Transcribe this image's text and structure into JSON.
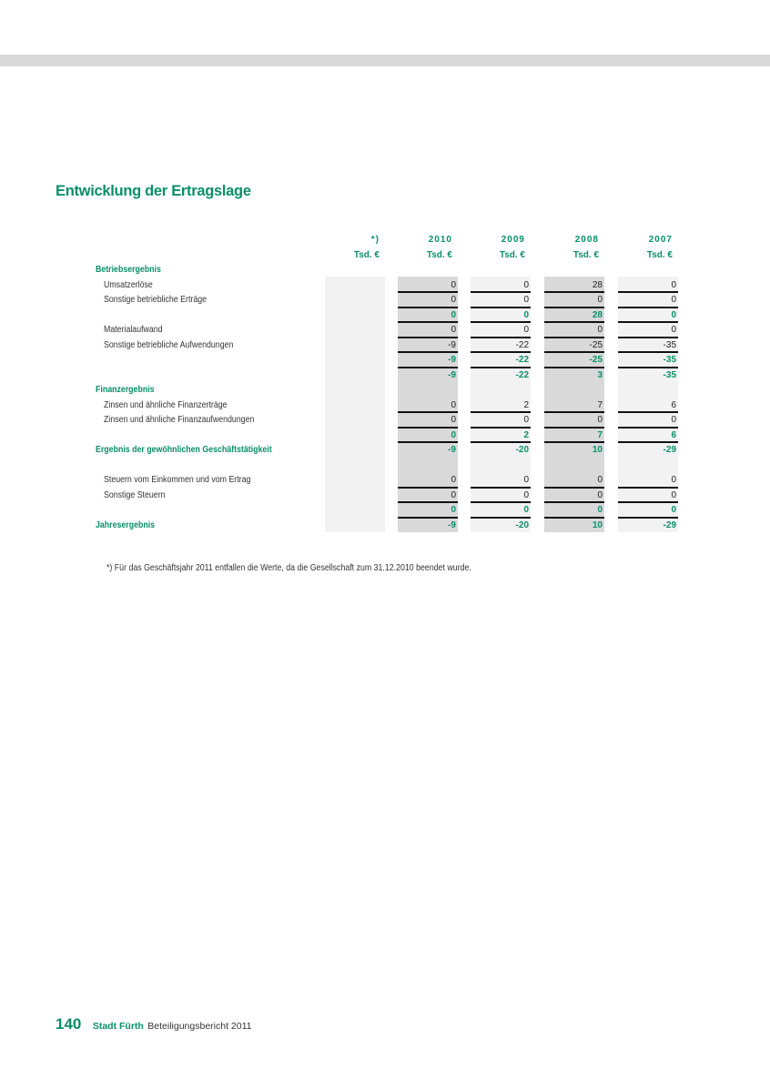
{
  "title": "Entwicklung der Ertragslage",
  "columns": [
    {
      "year": "*)",
      "unit": "Tsd. €",
      "shade": "light"
    },
    {
      "year": "2010",
      "unit": "Tsd. €",
      "shade": "dark"
    },
    {
      "year": "2009",
      "unit": "Tsd. €",
      "shade": "light"
    },
    {
      "year": "2008",
      "unit": "Tsd. €",
      "shade": "dark"
    },
    {
      "year": "2007",
      "unit": "Tsd. €",
      "shade": "light"
    }
  ],
  "rows": [
    {
      "label": "Betriebsergebnis",
      "type": "section",
      "values": null
    },
    {
      "label": "Umsatzerlöse",
      "type": "item",
      "values": [
        "",
        "0",
        "0",
        "28",
        "0"
      ],
      "line": true
    },
    {
      "label": "Sonstige betriebliche Erträge",
      "type": "item",
      "values": [
        "",
        "0",
        "0",
        "0",
        "0"
      ],
      "line": true
    },
    {
      "label": "",
      "type": "subtotal",
      "values": [
        "",
        "0",
        "0",
        "28",
        "0"
      ],
      "line": true
    },
    {
      "label": "Materialaufwand",
      "type": "item",
      "values": [
        "",
        "0",
        "0",
        "0",
        "0"
      ],
      "line": true
    },
    {
      "label": "Sonstige betriebliche Aufwendungen",
      "type": "item",
      "values": [
        "",
        "-9",
        "-22",
        "-25",
        "-35"
      ],
      "line": true
    },
    {
      "label": "",
      "type": "subtotal",
      "values": [
        "",
        "-9",
        "-22",
        "-25",
        "-35"
      ],
      "line": true
    },
    {
      "label": "",
      "type": "subtotal",
      "values": [
        "",
        "-9",
        "-22",
        "3",
        "-35"
      ],
      "line": false
    },
    {
      "label": "Finanzergebnis",
      "type": "section",
      "values": null
    },
    {
      "label": "Zinsen und ähnliche Finanzerträge",
      "type": "item",
      "values": [
        "",
        "0",
        "2",
        "7",
        "6"
      ],
      "line": true
    },
    {
      "label": "Zinsen und ähnliche Finanzaufwendungen",
      "type": "item",
      "values": [
        "",
        "0",
        "0",
        "0",
        "0"
      ],
      "line": true
    },
    {
      "label": "",
      "type": "subtotal",
      "values": [
        "",
        "0",
        "2",
        "7",
        "6"
      ],
      "line": true
    },
    {
      "label": "Ergebnis der gewöhnlichen Geschäftstätigkeit",
      "type": "section",
      "values": [
        "",
        "-9",
        "-20",
        "10",
        "-29"
      ],
      "line": false
    },
    {
      "label": "",
      "type": "blank",
      "values": null
    },
    {
      "label": "Steuern vom Einkommen und vom Ertrag",
      "type": "item",
      "values": [
        "",
        "0",
        "0",
        "0",
        "0"
      ],
      "line": true
    },
    {
      "label": "Sonstige Steuern",
      "type": "item",
      "values": [
        "",
        "0",
        "0",
        "0",
        "0"
      ],
      "line": true
    },
    {
      "label": "",
      "type": "subtotal",
      "values": [
        "",
        "0",
        "0",
        "0",
        "0"
      ],
      "line": true
    },
    {
      "label": "Jahresergebnis",
      "type": "section",
      "values": [
        "",
        "-9",
        "-20",
        "10",
        "-29"
      ],
      "line": false
    }
  ],
  "footnote": "*) Für das Geschäftsjahr 2011 entfallen die Werte, da die Gesellschaft zum 31.12.2010 beendet wurde.",
  "footer": {
    "page_number": "140",
    "city": "Stadt Fürth",
    "report": "Beteiligungsbericht 2011"
  },
  "colors": {
    "accent": "#0a8f68",
    "shade_dark": "#d9d9d9",
    "shade_light": "#f2f2f2"
  }
}
